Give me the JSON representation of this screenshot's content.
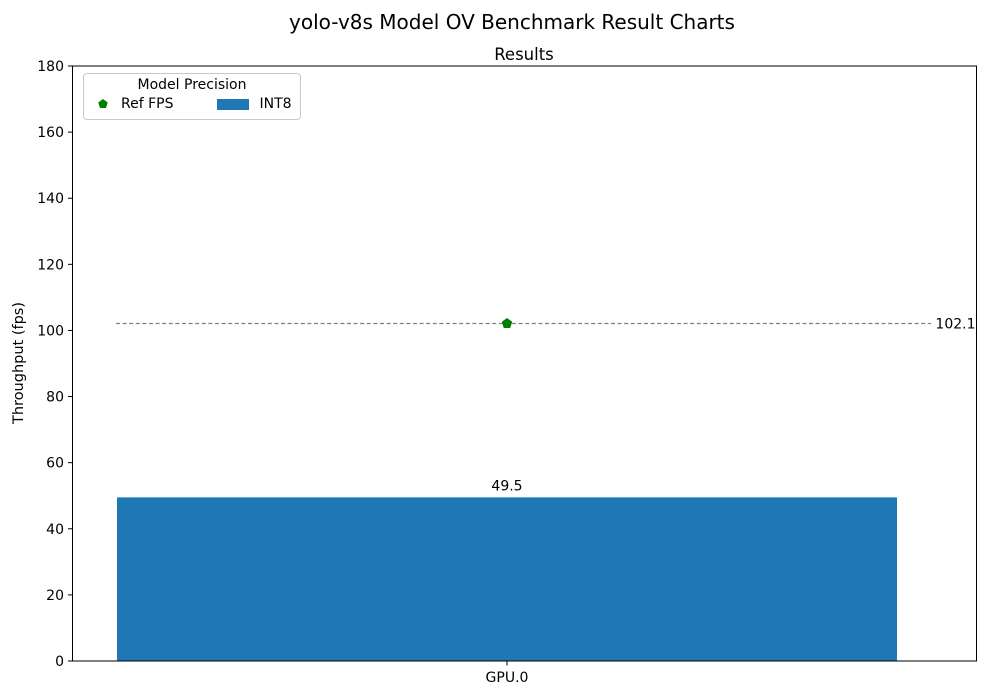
{
  "figure": {
    "title": "yolo-v8s Model OV Benchmark Result Charts"
  },
  "chart_data": {
    "type": "bar",
    "suptitle": "yolo-v8s Model OV Benchmark Result Charts",
    "title": "Results",
    "xlabel": "",
    "ylabel": "Throughput (fps)",
    "categories": [
      "GPU.0"
    ],
    "series": [
      {
        "name": "INT8",
        "type": "bar",
        "values": [
          49.5
        ],
        "value_labels": [
          "49.5"
        ],
        "color": "#1f77b4",
        "value_label_color": "#000000"
      },
      {
        "name": "Ref FPS",
        "type": "refline",
        "values": [
          102.1
        ],
        "value_labels": [
          "102.1"
        ],
        "line_style": "dashed",
        "line_color": "#808080",
        "marker": "pentagon",
        "marker_color": "#008000",
        "value_label_color": "#008000"
      }
    ],
    "ylim": [
      0,
      180
    ],
    "yticks": [
      0,
      20,
      40,
      60,
      80,
      100,
      120,
      140,
      160,
      180
    ],
    "grid": false,
    "legend": {
      "title": "Model Precision",
      "position": "upper-left",
      "entries": [
        {
          "label": "Ref FPS",
          "marker": "pentagon",
          "color": "#008000"
        },
        {
          "label": "INT8",
          "marker": "rect",
          "color": "#1f77b4"
        }
      ]
    }
  }
}
